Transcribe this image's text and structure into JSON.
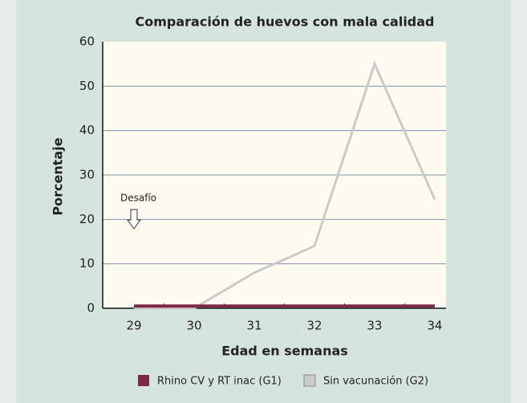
{
  "chart_data": {
    "type": "line",
    "title": "Comparación de huevos con mala calidad",
    "x_label": "Edad en semanas",
    "y_label": "Porcentaje",
    "categories": [
      "29",
      "30",
      "31",
      "32",
      "33",
      "34"
    ],
    "series": [
      {
        "name": "Rhino CV y RT inac (G1)",
        "color": "#7b2946",
        "values": [
          0.5,
          0.5,
          0.5,
          0.5,
          0.5,
          0.5
        ]
      },
      {
        "name": "Sin vacunación (G2)",
        "color": "#cacaca",
        "values": [
          0,
          0,
          8,
          14,
          55,
          24.5
        ]
      }
    ],
    "ylim": [
      0,
      60
    ],
    "yticks": [
      0,
      10,
      20,
      30,
      40,
      50,
      60
    ],
    "grid": true,
    "annotation": {
      "text": "Desafío",
      "x": "29"
    },
    "legend": "bottom"
  }
}
